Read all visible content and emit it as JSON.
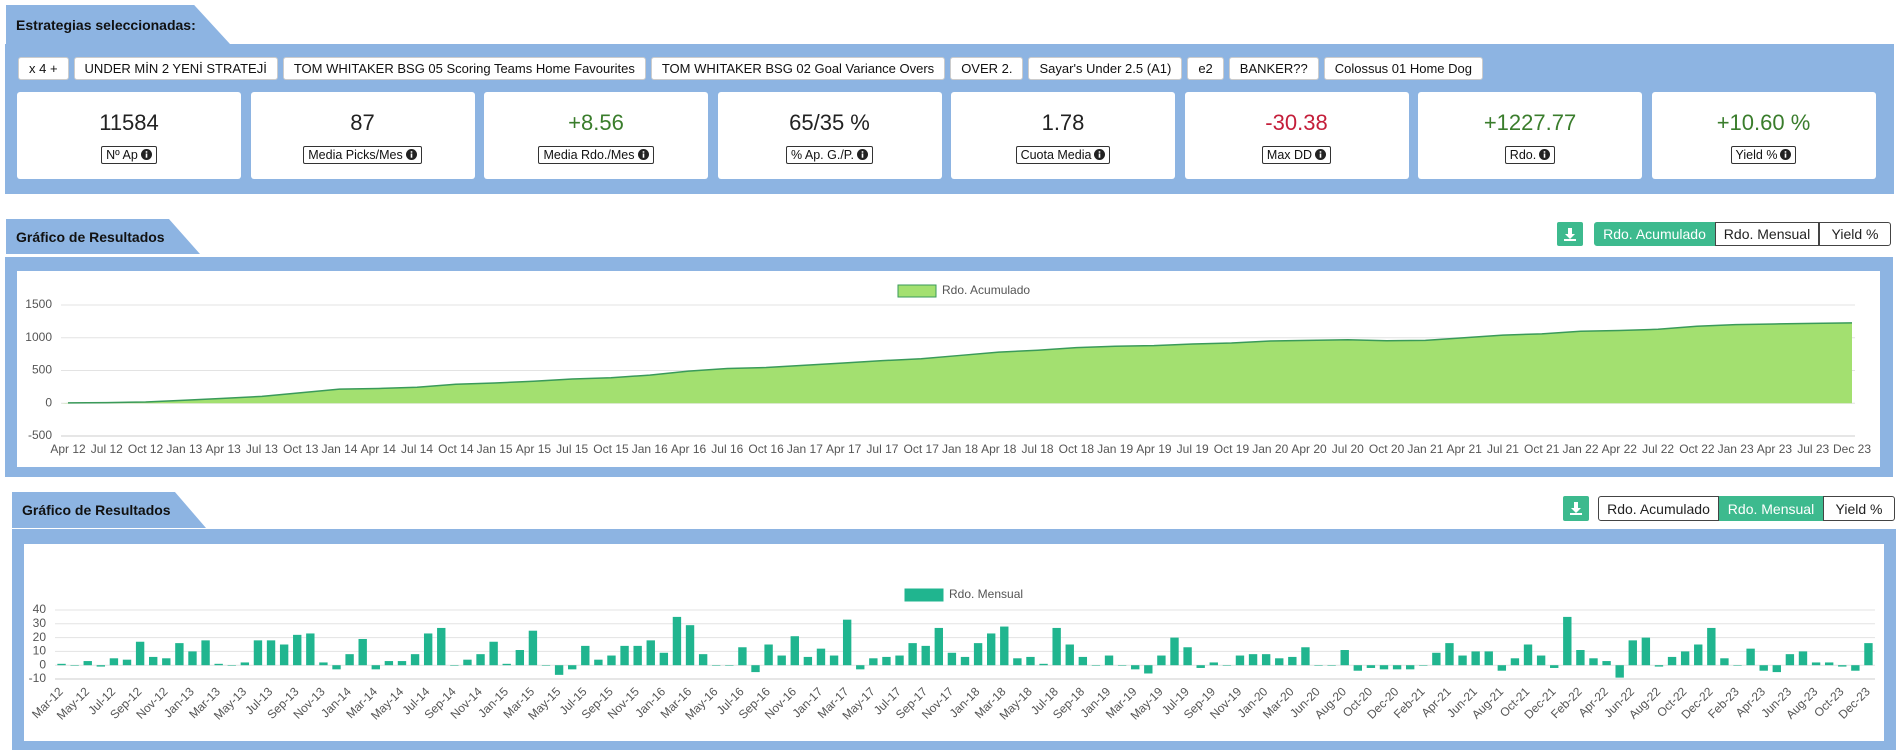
{
  "strategies": {
    "title": "Estrategias seleccionadas:",
    "tags": [
      "x 4 +",
      "UNDER MİN 2 YENİ STRATEJİ",
      "TOM WHITAKER BSG 05 Scoring Teams Home Favourites",
      "TOM WHITAKER BSG 02 Goal Variance Overs",
      "OVER 2.",
      "Sayar's Under 2.5 (A1)",
      "e2",
      "BANKER??",
      "Colossus 01 Home Dog"
    ]
  },
  "stats": [
    {
      "value": "11584",
      "label": "Nº Ap",
      "color": "#222222"
    },
    {
      "value": "87",
      "label": "Media Picks/Mes",
      "color": "#222222"
    },
    {
      "value": "+8.56",
      "label": "Media Rdo./Mes",
      "color": "#3a7d2c"
    },
    {
      "value": "65/35 %",
      "label": "% Ap. G./P.",
      "color": "#222222"
    },
    {
      "value": "1.78",
      "label": "Cuota Media",
      "color": "#222222"
    },
    {
      "value": "-30.38",
      "label": "Max DD",
      "color": "#c41e3a"
    },
    {
      "value": "+1227.77",
      "label": "Rdo.",
      "color": "#3a7d2c"
    },
    {
      "value": "+10.60 %",
      "label": "Yield %",
      "color": "#3a7d2c"
    }
  ],
  "chart_data": [
    {
      "type": "area",
      "title": "Gráfico de Resultados",
      "buttons": [
        "Rdo. Acumulado",
        "Rdo. Mensual",
        "Yield %"
      ],
      "active_button": "Rdo. Acumulado",
      "categories": [
        "Apr 12",
        "Jul 12",
        "Oct 12",
        "Jan 13",
        "Apr 13",
        "Jul 13",
        "Oct 13",
        "Jan 14",
        "Apr 14",
        "Jul 14",
        "Oct 14",
        "Jan 15",
        "Apr 15",
        "Jul 15",
        "Oct 15",
        "Jan 16",
        "Apr 16",
        "Jul 16",
        "Oct 16",
        "Jan 17",
        "Apr 17",
        "Jul 17",
        "Oct 17",
        "Jan 18",
        "Apr 18",
        "Jul 18",
        "Oct 18",
        "Jan 19",
        "Apr 19",
        "Jul 19",
        "Oct 19",
        "Jan 20",
        "Apr 20",
        "Jul 20",
        "Oct 20",
        "Jan 21",
        "Apr 21",
        "Jul 21",
        "Oct 21",
        "Jan 22",
        "Apr 22",
        "Jul 22",
        "Oct 22",
        "Jan 23",
        "Apr 23",
        "Jul 23",
        "Dec 23"
      ],
      "series": [
        {
          "name": "Rdo. Acumulado",
          "color": "#a3e070",
          "line_color": "#3a9a5a",
          "values": [
            5,
            10,
            20,
            45,
            75,
            105,
            160,
            215,
            225,
            245,
            290,
            310,
            335,
            370,
            390,
            430,
            490,
            530,
            545,
            580,
            615,
            650,
            680,
            730,
            780,
            810,
            850,
            870,
            880,
            905,
            920,
            950,
            960,
            970,
            955,
            960,
            1000,
            1040,
            1060,
            1100,
            1110,
            1130,
            1175,
            1200,
            1210,
            1220,
            1227.77
          ]
        }
      ],
      "ylim": [
        -500,
        1500
      ],
      "yticks": [
        -500,
        0,
        500,
        1000,
        1500
      ],
      "grid": true
    },
    {
      "type": "bar",
      "title": "Gráfico de Resultados",
      "buttons": [
        "Rdo. Acumulado",
        "Rdo. Mensual",
        "Yield %"
      ],
      "active_button": "Rdo. Mensual",
      "categories": [
        "Mar-12",
        null,
        "May-12",
        null,
        "Jul-12",
        null,
        "Sep-12",
        null,
        "Nov-12",
        null,
        "Jan-13",
        null,
        "Mar-13",
        null,
        "May-13",
        null,
        "Jul-13",
        null,
        "Sep-13",
        null,
        "Nov-13",
        null,
        "Jan-14",
        null,
        "Mar-14",
        null,
        "May-14",
        null,
        "Jul-14",
        null,
        "Sep-14",
        null,
        "Nov-14",
        null,
        "Jan-15",
        null,
        "Mar-15",
        null,
        "May-15",
        null,
        "Jul-15",
        null,
        "Sep-15",
        null,
        "Nov-15",
        null,
        "Jan-16",
        null,
        "Mar-16",
        null,
        "May-16",
        null,
        "Jul-16",
        null,
        "Sep-16",
        null,
        "Nov-16",
        null,
        "Jan-17",
        null,
        "Mar-17",
        null,
        "May-17",
        null,
        "Jul-17",
        null,
        "Sep-17",
        null,
        "Nov-17",
        null,
        "Jan-18",
        null,
        "Mar-18",
        null,
        "May-18",
        null,
        "Jul-18",
        null,
        "Sep-18",
        null,
        "Jan-19",
        null,
        "Mar-19",
        null,
        "May-19",
        null,
        "Jul-19",
        null,
        "Sep-19",
        null,
        "Nov-19",
        null,
        "Jan-20",
        null,
        "Mar-20",
        null,
        "Jun-20",
        null,
        "Aug-20",
        null,
        "Oct-20",
        null,
        "Dec-20",
        null,
        "Feb-21",
        null,
        "Apr-21",
        null,
        "Jun-21",
        null,
        "Aug-21",
        null,
        "Oct-21",
        null,
        "Dec-21",
        null,
        "Feb-22",
        null,
        "Apr-22",
        null,
        "Jun-22",
        null,
        "Aug-22",
        null,
        "Oct-22",
        null,
        "Dec-22",
        null,
        "Feb-23",
        null,
        "Apr-23",
        null,
        "Jun-23",
        null,
        "Aug-23",
        null,
        "Oct-23",
        null,
        "Dec-23"
      ],
      "series": [
        {
          "name": "Rdo. Mensual",
          "color": "#20b58f",
          "values": [
            1,
            0,
            3,
            -1,
            5,
            4,
            17,
            6,
            5,
            16,
            10,
            18,
            1,
            0,
            2,
            18,
            18,
            15,
            22,
            23,
            2,
            -3,
            8,
            19,
            -3,
            3,
            3,
            8,
            23,
            27,
            0,
            4,
            8,
            17,
            1,
            11,
            25,
            0,
            -7,
            -3,
            14,
            4,
            7,
            14,
            14,
            18,
            9,
            35,
            29,
            8,
            0,
            0,
            13,
            -5,
            15,
            7,
            21,
            6,
            12,
            7,
            33,
            -3,
            5,
            6,
            7,
            16,
            14,
            27,
            9,
            6,
            16,
            23,
            28,
            5,
            6,
            1,
            27,
            15,
            6,
            0,
            7,
            0,
            -3,
            -6,
            7,
            20,
            13,
            -2,
            2,
            0,
            7,
            8,
            8,
            5,
            6,
            13,
            0,
            0,
            11,
            -4,
            -2,
            -3,
            -3,
            -3,
            0,
            9,
            16,
            7,
            10,
            10,
            -4,
            5,
            15,
            7,
            -2,
            35,
            11,
            5,
            3,
            -9,
            18,
            20,
            -1,
            6,
            10,
            15,
            27,
            5,
            0,
            12,
            -4,
            -5,
            8,
            10,
            2,
            2,
            -1,
            -4,
            16
          ]
        }
      ],
      "ylim": [
        -10,
        40
      ],
      "yticks": [
        -10,
        0,
        10,
        20,
        30,
        40
      ],
      "grid": true
    }
  ]
}
